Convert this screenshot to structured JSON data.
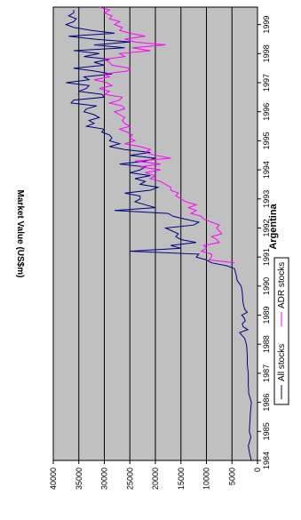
{
  "chart_data": {
    "type": "line",
    "title": "Argentina",
    "ylabel": "Market Value (US$m)",
    "xlabel": "",
    "x_ticks": [
      "1984",
      "1985",
      "1986",
      "1987",
      "1988",
      "1989",
      "1990",
      "1991",
      "1992",
      "1993",
      "1994",
      "1995",
      "1996",
      "1997",
      "1998",
      "1999"
    ],
    "y_ticks": [
      "0",
      "5000",
      "10000",
      "15000",
      "20000",
      "25000",
      "30000",
      "35000",
      "40000"
    ],
    "xlim": [
      1984,
      1999.6
    ],
    "ylim": [
      0,
      40000
    ],
    "grid": true,
    "legend": "bottom",
    "colors": {
      "plot_bg": "#c0c0c0",
      "all": "#000080",
      "adr": "#ff00ff"
    },
    "series": [
      {
        "name": "All stocks",
        "x": [
          1984.0,
          1984.2,
          1984.5,
          1984.8,
          1985.0,
          1985.3,
          1985.6,
          1986.0,
          1986.3,
          1986.6,
          1987.0,
          1987.3,
          1987.6,
          1987.9,
          1988.0,
          1988.2,
          1988.4,
          1988.5,
          1988.6,
          1988.7,
          1988.8,
          1988.9,
          1989.0,
          1989.1,
          1989.2,
          1989.4,
          1989.6,
          1989.8,
          1990.0,
          1990.2,
          1990.4,
          1990.6,
          1990.7,
          1990.8,
          1990.9,
          1991.0,
          1991.1,
          1991.2,
          1991.3,
          1991.4,
          1991.5,
          1991.6,
          1991.7,
          1991.8,
          1992.0,
          1992.1,
          1992.2,
          1992.3,
          1992.4,
          1992.5,
          1992.6,
          1992.7,
          1992.8,
          1992.9,
          1993.0,
          1993.1,
          1993.2,
          1993.3,
          1993.4,
          1993.5,
          1993.6,
          1993.7,
          1993.8,
          1993.9,
          1994.0,
          1994.1,
          1994.2,
          1994.3,
          1994.4,
          1994.5,
          1994.6,
          1994.7,
          1994.8,
          1994.9,
          1995.0,
          1995.1,
          1995.2,
          1995.3,
          1995.4,
          1995.5,
          1995.6,
          1995.7,
          1995.8,
          1995.9,
          1996.0,
          1996.1,
          1996.2,
          1996.3,
          1996.4,
          1996.5,
          1996.6,
          1996.7,
          1996.8,
          1996.9,
          1997.0,
          1997.1,
          1997.2,
          1997.3,
          1997.4,
          1997.5,
          1997.6,
          1997.7,
          1997.8,
          1997.9,
          1998.0,
          1998.1,
          1998.2,
          1998.3,
          1998.4,
          1998.5,
          1998.6,
          1998.7,
          1998.8,
          1998.9,
          1999.0,
          1999.1,
          1999.2,
          1999.3,
          1999.4,
          1999.5
        ],
        "values": [
          1200,
          1500,
          1800,
          1300,
          1600,
          1500,
          1400,
          1200,
          1700,
          1800,
          1800,
          2000,
          2000,
          2100,
          2200,
          2500,
          3500,
          1900,
          2800,
          3000,
          2400,
          2600,
          3100,
          2000,
          2500,
          2800,
          2900,
          3000,
          3200,
          4000,
          4200,
          4500,
          6000,
          9000,
          10000,
          12000,
          11500,
          25000,
          15000,
          17000,
          12000,
          15000,
          16000,
          15500,
          18000,
          12500,
          11500,
          14000,
          16500,
          17500,
          28000,
          20000,
          22000,
          24000,
          23000,
          23000,
          26000,
          21000,
          19500,
          23000,
          22000,
          24000,
          21000,
          25000,
          23000,
          22000,
          27000,
          22000,
          20000,
          25000,
          21000,
          26000,
          29000,
          27000,
          29000,
          28500,
          29000,
          30500,
          30000,
          33500,
          32000,
          33000,
          31000,
          32000,
          34000,
          33500,
          31500,
          36500,
          36000,
          30000,
          30500,
          35000,
          33500,
          33000,
          37500,
          33000,
          34000,
          28500,
          32000,
          36000,
          30000,
          32000,
          29000,
          34000,
          31000,
          36000,
          26000,
          32000,
          25000,
          32000,
          37000,
          28000,
          32500,
          36000,
          37500,
          36000,
          35500,
          37000,
          36000,
          36000
        ]
      },
      {
        "name": "ADR stocks",
        "x": [
          1990.8,
          1990.9,
          1991.0,
          1991.1,
          1991.2,
          1991.3,
          1991.4,
          1991.5,
          1991.6,
          1991.7,
          1991.8,
          1992.0,
          1992.1,
          1992.2,
          1992.3,
          1992.4,
          1992.5,
          1992.6,
          1992.7,
          1992.8,
          1992.9,
          1993.0,
          1993.1,
          1993.2,
          1993.3,
          1993.4,
          1993.5,
          1993.6,
          1993.7,
          1993.8,
          1993.9,
          1994.0,
          1994.1,
          1994.2,
          1994.3,
          1994.4,
          1994.5,
          1994.6,
          1994.7,
          1994.8,
          1994.9,
          1995.0,
          1995.1,
          1995.2,
          1995.3,
          1995.4,
          1995.5,
          1995.6,
          1995.7,
          1995.8,
          1995.9,
          1996.0,
          1996.1,
          1996.2,
          1996.3,
          1996.4,
          1996.5,
          1996.6,
          1996.7,
          1996.8,
          1996.9,
          1997.0,
          1997.1,
          1997.2,
          1997.3,
          1997.4,
          1997.5,
          1997.6,
          1997.7,
          1997.8,
          1997.9,
          1998.0,
          1998.1,
          1998.2,
          1998.3,
          1998.4,
          1998.5,
          1998.6,
          1998.7,
          1998.8,
          1998.9,
          1999.0,
          1999.1,
          1999.2,
          1999.3,
          1999.4,
          1999.5,
          1999.6
        ],
        "values": [
          4500,
          9500,
          9000,
          9000,
          11000,
          10000,
          10500,
          7500,
          8000,
          9000,
          7000,
          8000,
          7500,
          9000,
          10500,
          11000,
          13000,
          12000,
          13500,
          12000,
          14000,
          15000,
          16000,
          15500,
          17000,
          17000,
          18000,
          19000,
          21000,
          20000,
          22000,
          19000,
          23000,
          19000,
          24000,
          17000,
          20000,
          22000,
          21000,
          23000,
          26000,
          24000,
          25000,
          24500,
          25500,
          27000,
          25000,
          26000,
          26500,
          26000,
          27000,
          28000,
          26000,
          26500,
          29000,
          27000,
          26500,
          30000,
          29000,
          31000,
          28500,
          29500,
          32000,
          29000,
          30000,
          25500,
          25000,
          28500,
          29000,
          30000,
          26000,
          27000,
          21000,
          24500,
          18000,
          24000,
          26000,
          22000,
          25000,
          27000,
          26500,
          28000,
          27000,
          29000,
          28500,
          30000,
          29000,
          31000
        ]
      }
    ]
  }
}
